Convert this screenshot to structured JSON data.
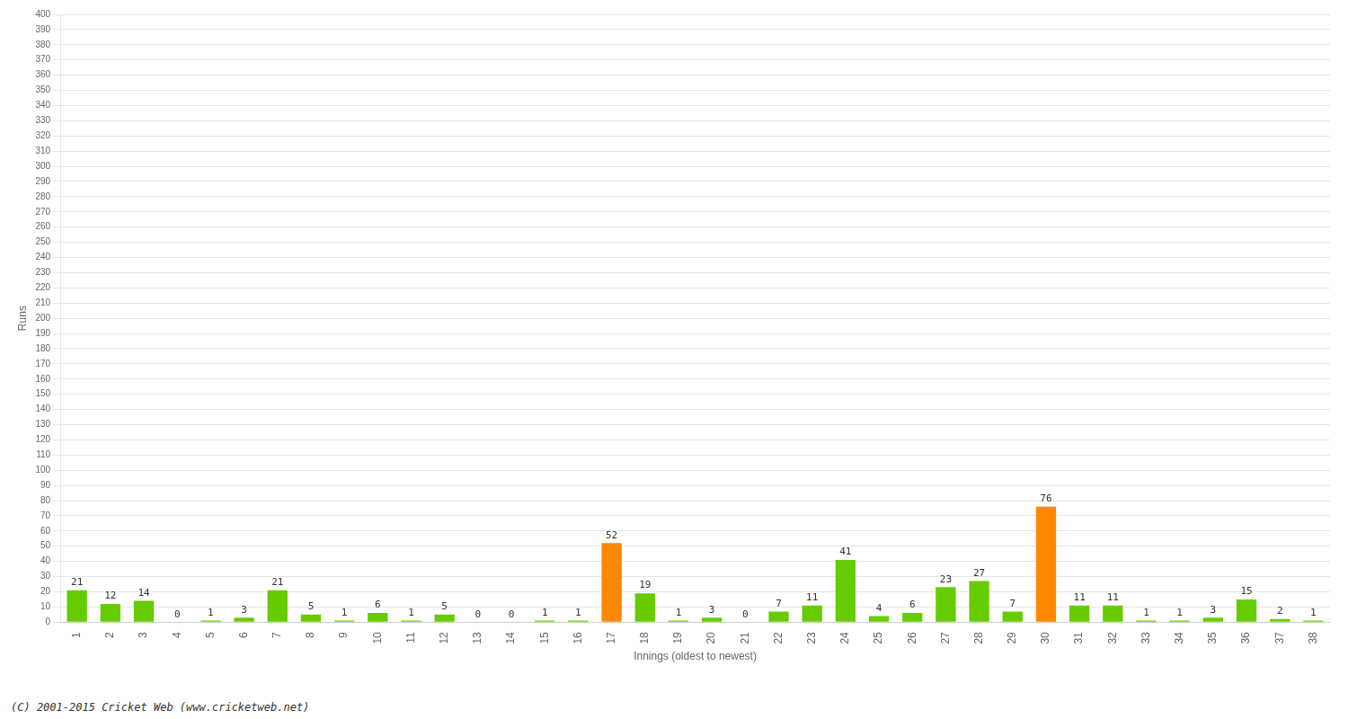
{
  "chart_data": {
    "type": "bar",
    "xlabel": "Innings (oldest to newest)",
    "ylabel": "Runs",
    "categories": [
      1,
      2,
      3,
      4,
      5,
      6,
      7,
      8,
      9,
      10,
      11,
      12,
      13,
      14,
      15,
      16,
      17,
      18,
      19,
      20,
      21,
      22,
      23,
      24,
      25,
      26,
      27,
      28,
      29,
      30,
      31,
      32,
      33,
      34,
      35,
      36,
      37,
      38
    ],
    "values": [
      21,
      12,
      14,
      0,
      1,
      3,
      21,
      5,
      1,
      6,
      1,
      5,
      0,
      0,
      1,
      1,
      52,
      19,
      1,
      3,
      0,
      7,
      11,
      41,
      4,
      6,
      23,
      27,
      7,
      76,
      11,
      11,
      1,
      1,
      3,
      15,
      2,
      1
    ],
    "colors": [
      "#66cc00",
      "#66cc00",
      "#66cc00",
      "#66cc00",
      "#66cc00",
      "#66cc00",
      "#66cc00",
      "#66cc00",
      "#66cc00",
      "#66cc00",
      "#66cc00",
      "#66cc00",
      "#66cc00",
      "#66cc00",
      "#66cc00",
      "#66cc00",
      "#ff8800",
      "#66cc00",
      "#66cc00",
      "#66cc00",
      "#66cc00",
      "#66cc00",
      "#66cc00",
      "#66cc00",
      "#66cc00",
      "#66cc00",
      "#66cc00",
      "#66cc00",
      "#66cc00",
      "#ff8800",
      "#66cc00",
      "#66cc00",
      "#66cc00",
      "#66cc00",
      "#66cc00",
      "#66cc00",
      "#66cc00",
      "#66cc00"
    ],
    "ylim": [
      0,
      400
    ],
    "yticks": [
      0,
      10,
      20,
      30,
      40,
      50,
      60,
      70,
      80,
      90,
      100,
      110,
      120,
      130,
      140,
      150,
      160,
      170,
      180,
      190,
      200,
      210,
      220,
      230,
      240,
      250,
      260,
      270,
      280,
      290,
      300,
      310,
      320,
      330,
      340,
      350,
      360,
      370,
      380,
      390,
      400
    ],
    "grid": true,
    "data_labels": true,
    "annotations": [
      "(C) 2001-2015 Cricket Web (www.cricketweb.net)"
    ]
  }
}
